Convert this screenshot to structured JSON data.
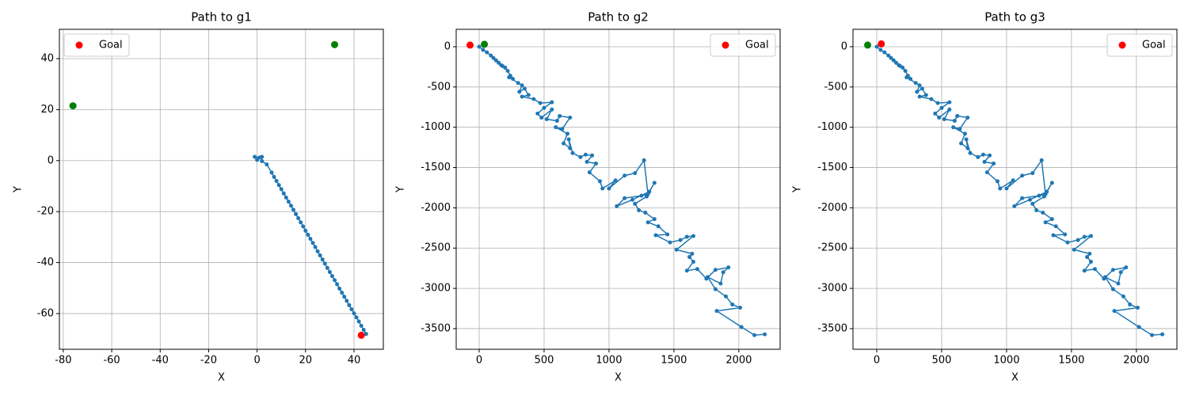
{
  "chart_data": [
    {
      "type": "line",
      "title": "Path to g1",
      "xlabel": "X",
      "ylabel": "Y",
      "xlim": [
        -81.6,
        52.1
      ],
      "ylim": [
        -74,
        51.5
      ],
      "xticks": [
        -80,
        -60,
        -40,
        -20,
        0,
        20,
        40
      ],
      "yticks": [
        -60,
        -40,
        -20,
        0,
        20,
        40
      ],
      "grid": true,
      "legend": "upper left",
      "series": [
        {
          "style": "line-marker",
          "color": "#1f77b4",
          "x": [
            -1,
            1,
            0,
            2,
            2,
            4,
            6,
            7,
            8,
            9,
            10,
            11,
            12,
            13,
            14,
            15,
            16,
            17,
            18,
            19,
            20,
            21,
            22,
            23,
            24,
            25,
            26,
            27,
            28,
            29,
            30,
            31,
            32,
            33,
            34,
            35,
            36,
            37,
            38,
            39,
            40,
            41,
            42,
            43,
            44,
            45
          ],
          "values": [
            1.5,
            1.2,
            0.3,
            1.5,
            -0.2,
            -1.5,
            -4.7,
            -6.4,
            -8.0,
            -9.6,
            -11.2,
            -12.9,
            -14.5,
            -16.1,
            -17.7,
            -19.3,
            -21.0,
            -22.6,
            -24.2,
            -25.8,
            -27.5,
            -29.1,
            -30.7,
            -32.3,
            -33.9,
            -35.6,
            -37.2,
            -38.8,
            -40.4,
            -42.1,
            -43.7,
            -45.3,
            -46.9,
            -48.5,
            -50.2,
            -51.8,
            -53.4,
            -55.0,
            -56.7,
            -58.3,
            -59.9,
            -61.5,
            -63.1,
            -64.8,
            -66.4,
            -68.0
          ]
        },
        {
          "style": "scatter",
          "color": "#008000",
          "x": [
            -76,
            32
          ],
          "values": [
            21.5,
            45.5
          ]
        },
        {
          "style": "scatter",
          "color": "#ff0000",
          "name": "Goal",
          "x": [
            43
          ],
          "values": [
            -68.5
          ]
        }
      ]
    },
    {
      "type": "line",
      "title": "Path to g2",
      "xlabel": "X",
      "ylabel": "Y",
      "xlim": [
        -177,
        2318
      ],
      "ylim": [
        -3756,
        216
      ],
      "xticks": [
        0,
        500,
        1000,
        1500,
        2000
      ],
      "yticks": [
        -3500,
        -3000,
        -2500,
        -2000,
        -1500,
        -1000,
        -500,
        0
      ],
      "grid": true,
      "legend": "upper right",
      "series": [
        {
          "style": "line-marker",
          "color": "#1f77b4",
          "x": [
            0,
            30,
            60,
            90,
            110,
            130,
            150,
            170,
            200,
            180,
            220,
            240,
            260,
            230,
            300,
            330,
            310,
            350,
            380,
            330,
            420,
            470,
            560,
            500,
            450,
            480,
            560,
            520,
            600,
            620,
            700,
            640,
            590,
            680,
            650,
            700,
            690,
            720,
            780,
            820,
            870,
            830,
            900,
            850,
            930,
            950,
            1050,
            1000,
            1120,
            1200,
            1270,
            1300,
            1250,
            1120,
            1060,
            1180,
            1310,
            1350,
            1290,
            1200,
            1230,
            1280,
            1350,
            1300,
            1380,
            1450,
            1360,
            1470,
            1550,
            1600,
            1650,
            1520,
            1640,
            1620,
            1650,
            1600,
            1680,
            1750,
            1820,
            1920,
            1880,
            1860,
            1760,
            1820,
            1900,
            1950,
            2010,
            1830,
            2020,
            2120,
            2200
          ],
          "values": [
            0,
            -40,
            -70,
            -110,
            -140,
            -170,
            -200,
            -230,
            -260,
            -240,
            -300,
            -360,
            -400,
            -380,
            -450,
            -480,
            -560,
            -520,
            -600,
            -620,
            -650,
            -700,
            -690,
            -760,
            -830,
            -880,
            -780,
            -900,
            -920,
            -860,
            -880,
            -1020,
            -1000,
            -1080,
            -1200,
            -1260,
            -1150,
            -1320,
            -1370,
            -1340,
            -1350,
            -1430,
            -1450,
            -1560,
            -1670,
            -1760,
            -1660,
            -1760,
            -1600,
            -1570,
            -1410,
            -1830,
            -1850,
            -1880,
            -1980,
            -1900,
            -1800,
            -1690,
            -1860,
            -1950,
            -2030,
            -2060,
            -2140,
            -2180,
            -2230,
            -2330,
            -2340,
            -2430,
            -2400,
            -2360,
            -2350,
            -2520,
            -2570,
            -2610,
            -2670,
            -2780,
            -2760,
            -2880,
            -2770,
            -2740,
            -2800,
            -2940,
            -2860,
            -3010,
            -3100,
            -3200,
            -3240,
            -3280,
            -3480,
            -3580,
            -3570
          ]
        },
        {
          "style": "scatter",
          "color": "#008000",
          "x": [
            40
          ],
          "values": [
            30
          ]
        },
        {
          "style": "scatter",
          "color": "#ff0000",
          "name": "Goal",
          "x": [
            -70
          ],
          "values": [
            20
          ]
        }
      ]
    },
    {
      "type": "line",
      "title": "Path to g3",
      "xlabel": "X",
      "ylabel": "Y",
      "xlim": [
        -183,
        2312
      ],
      "ylim": [
        -3756,
        216
      ],
      "xticks": [
        0,
        500,
        1000,
        1500,
        2000
      ],
      "yticks": [
        -3500,
        -3000,
        -2500,
        -2000,
        -1500,
        -1000,
        -500,
        0
      ],
      "grid": true,
      "legend": "upper right",
      "series": [
        {
          "style": "line-marker",
          "color": "#1f77b4",
          "x": [
            0,
            30,
            60,
            90,
            110,
            130,
            150,
            170,
            200,
            180,
            220,
            240,
            260,
            230,
            300,
            330,
            310,
            350,
            380,
            330,
            420,
            470,
            560,
            500,
            450,
            480,
            560,
            520,
            600,
            620,
            700,
            640,
            590,
            680,
            650,
            700,
            690,
            720,
            780,
            820,
            870,
            830,
            900,
            850,
            930,
            950,
            1050,
            1000,
            1120,
            1200,
            1270,
            1300,
            1250,
            1120,
            1060,
            1180,
            1310,
            1350,
            1290,
            1200,
            1230,
            1280,
            1350,
            1300,
            1380,
            1450,
            1360,
            1470,
            1550,
            1600,
            1650,
            1520,
            1640,
            1620,
            1650,
            1600,
            1680,
            1750,
            1820,
            1920,
            1880,
            1860,
            1760,
            1820,
            1900,
            1950,
            2010,
            1830,
            2020,
            2120,
            2200
          ],
          "values": [
            0,
            -40,
            -70,
            -110,
            -140,
            -170,
            -200,
            -230,
            -260,
            -240,
            -300,
            -360,
            -400,
            -380,
            -450,
            -480,
            -560,
            -520,
            -600,
            -620,
            -650,
            -700,
            -690,
            -760,
            -830,
            -880,
            -780,
            -900,
            -920,
            -860,
            -880,
            -1020,
            -1000,
            -1080,
            -1200,
            -1260,
            -1150,
            -1320,
            -1370,
            -1340,
            -1350,
            -1430,
            -1450,
            -1560,
            -1670,
            -1760,
            -1660,
            -1760,
            -1600,
            -1570,
            -1410,
            -1830,
            -1850,
            -1880,
            -1980,
            -1900,
            -1800,
            -1690,
            -1860,
            -1950,
            -2030,
            -2060,
            -2140,
            -2180,
            -2230,
            -2330,
            -2340,
            -2430,
            -2400,
            -2360,
            -2350,
            -2520,
            -2570,
            -2610,
            -2670,
            -2780,
            -2760,
            -2880,
            -2770,
            -2740,
            -2800,
            -2940,
            -2860,
            -3010,
            -3100,
            -3200,
            -3240,
            -3280,
            -3480,
            -3580,
            -3570
          ]
        },
        {
          "style": "scatter",
          "color": "#008000",
          "x": [
            -70
          ],
          "values": [
            20
          ]
        },
        {
          "style": "scatter",
          "color": "#ff0000",
          "name": "Goal",
          "x": [
            35
          ],
          "values": [
            35
          ]
        }
      ]
    }
  ]
}
